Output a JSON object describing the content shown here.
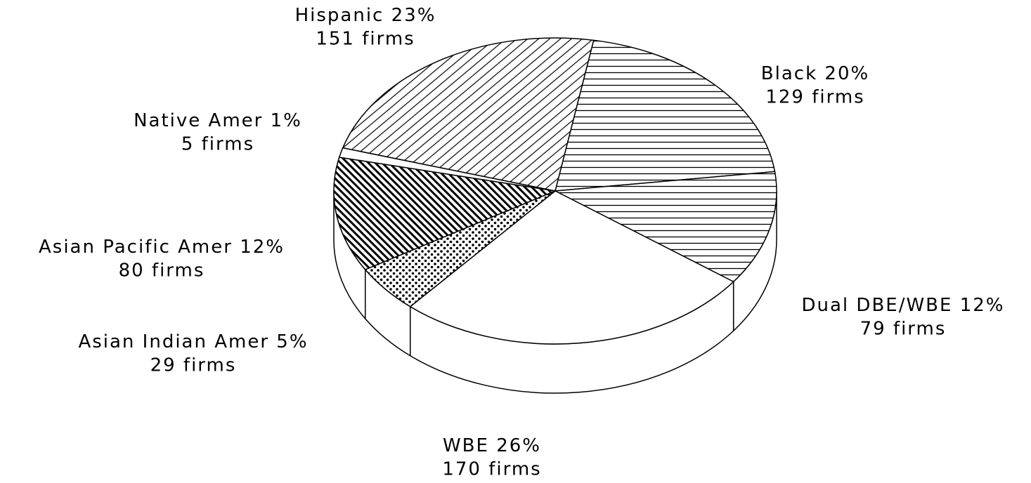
{
  "chart_data": {
    "type": "pie",
    "categories": [
      "Black",
      "Dual DBE/WBE",
      "WBE",
      "Asian Indian Amer",
      "Asian Pacific Amer",
      "Native Amer",
      "Hispanic"
    ],
    "values": [
      20,
      12,
      26,
      5,
      12,
      1,
      23
    ],
    "value_labels": [
      "20%",
      "12%",
      "26%",
      "5%",
      "12%",
      "1%",
      "23%"
    ],
    "counts": [
      129,
      79,
      170,
      29,
      80,
      5,
      151
    ],
    "count_labels": [
      "129 firms",
      "79 firms",
      "170 firms",
      "29 firms",
      "80 firms",
      "5 firms",
      "151 firms"
    ],
    "patterns": [
      "horizontal",
      "horizontal",
      "none",
      "dots",
      "dense-backslash",
      "none",
      "slash"
    ],
    "three_d": true
  }
}
